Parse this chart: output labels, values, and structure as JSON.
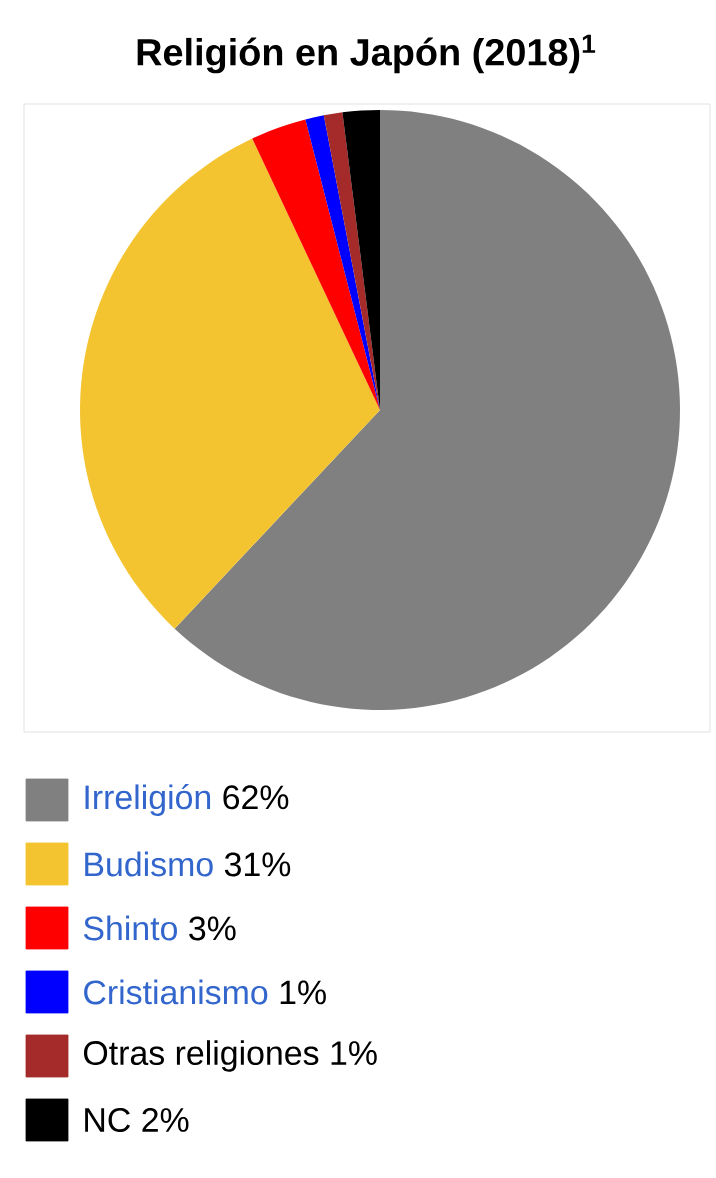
{
  "chart_data": {
    "type": "pie",
    "title": "Religión en Japón (2018)$^{1}$",
    "categories": [
      "Irreligión",
      "Budismo",
      "Shinto",
      "Cristianismo",
      "Otras religiones",
      "NC"
    ],
    "values": [
      62,
      31,
      3,
      1,
      1,
      2
    ],
    "value_labels": [
      "62%",
      "31%",
      "3%",
      "1%",
      "1%",
      "2%"
    ],
    "colors": [
      "#808080",
      "#f4c430",
      "#ff0000",
      "#0000ff",
      "#a52a2a",
      "#000000"
    ],
    "legend": "bottom"
  }
}
